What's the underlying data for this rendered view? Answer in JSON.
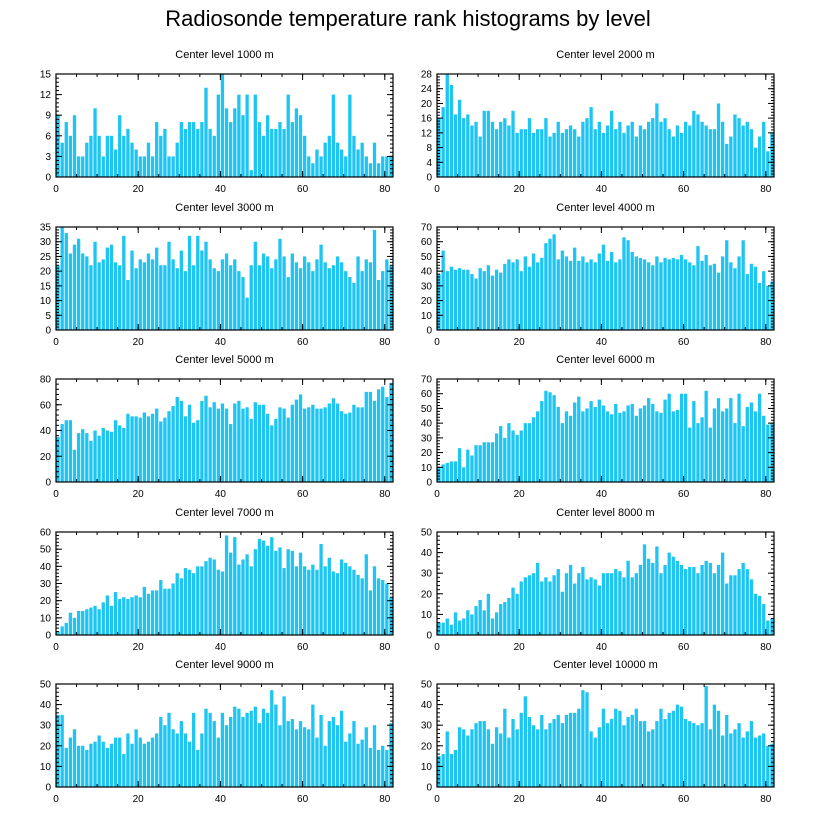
{
  "figure": {
    "title": "Radiosonde temperature rank histograms by level"
  },
  "chart_data": [
    {
      "type": "bar",
      "title": "Center level 1000 m",
      "xlim": [
        0,
        82
      ],
      "ylim": [
        0,
        15
      ],
      "xticks": [
        0,
        20,
        40,
        60,
        80
      ],
      "yticks": [
        0,
        3,
        6,
        9,
        12,
        15
      ],
      "y_axis_side": "left",
      "values": [
        9,
        5,
        8,
        6,
        9,
        3,
        3,
        5,
        6,
        10,
        6,
        3,
        6,
        6,
        4,
        9,
        6,
        7,
        5,
        4,
        3,
        3,
        5,
        3,
        8,
        6,
        7,
        3,
        3,
        5,
        8,
        7,
        8,
        8,
        7,
        8,
        13,
        7,
        6,
        12,
        15,
        10,
        8,
        10,
        12,
        9,
        12,
        1,
        12,
        8,
        6,
        9,
        7,
        7,
        8,
        7,
        12,
        8,
        10,
        9,
        6,
        3,
        2,
        4,
        3,
        5,
        6,
        12,
        5,
        4,
        3,
        12,
        6,
        4,
        5,
        3,
        2,
        5,
        2,
        3,
        3,
        3
      ]
    },
    {
      "type": "bar",
      "title": "Center level 2000 m",
      "xlim": [
        0,
        82
      ],
      "ylim": [
        0,
        28
      ],
      "xticks": [
        0,
        20,
        40,
        60,
        80
      ],
      "yticks": [
        0,
        4,
        8,
        12,
        16,
        20,
        24,
        28
      ],
      "y_axis_side": "left",
      "values": [
        16,
        19,
        28,
        25,
        17,
        21,
        16,
        17,
        14,
        15,
        11,
        18,
        18,
        15,
        13,
        15,
        16,
        14,
        18,
        12,
        13,
        13,
        16,
        12,
        13,
        13,
        16,
        11,
        12,
        15,
        12,
        13,
        14,
        13,
        11,
        15,
        16,
        19,
        13,
        15,
        12,
        14,
        18,
        13,
        15,
        12,
        14,
        15,
        11,
        14,
        13,
        15,
        16,
        20,
        15,
        16,
        13,
        11,
        14,
        12,
        15,
        14,
        18,
        17,
        15,
        14,
        13,
        13,
        20,
        15,
        9,
        11,
        17,
        16,
        14,
        15,
        13,
        8,
        11,
        15,
        7,
        12
      ]
    },
    {
      "type": "bar",
      "title": "Center level 3000 m",
      "xlim": [
        0,
        82
      ],
      "ylim": [
        0,
        35
      ],
      "xticks": [
        0,
        20,
        40,
        60,
        80
      ],
      "yticks": [
        0,
        5,
        10,
        15,
        20,
        25,
        30,
        35
      ],
      "y_axis_side": "left",
      "values": [
        22,
        35,
        33,
        26,
        29,
        31,
        26,
        25,
        22,
        30,
        23,
        24,
        28,
        29,
        23,
        22,
        32,
        17,
        27,
        21,
        24,
        23,
        26,
        24,
        28,
        22,
        22,
        30,
        24,
        21,
        27,
        20,
        32,
        22,
        32,
        27,
        30,
        24,
        21,
        20,
        24,
        26,
        22,
        24,
        20,
        18,
        11,
        22,
        30,
        22,
        26,
        25,
        21,
        24,
        31,
        25,
        18,
        26,
        23,
        21,
        25,
        23,
        20,
        24,
        29,
        23,
        21,
        22,
        25,
        23,
        20,
        18,
        16,
        25,
        20,
        24,
        23,
        34,
        17,
        20,
        24,
        22
      ]
    },
    {
      "type": "bar",
      "title": "Center level 4000 m",
      "xlim": [
        0,
        82
      ],
      "ylim": [
        0,
        70
      ],
      "xticks": [
        0,
        20,
        40,
        60,
        80
      ],
      "yticks": [
        0,
        10,
        20,
        30,
        40,
        50,
        60,
        70
      ],
      "y_axis_side": "left",
      "values": [
        38,
        54,
        40,
        43,
        41,
        42,
        41,
        41,
        38,
        35,
        42,
        40,
        44,
        37,
        41,
        39,
        45,
        48,
        46,
        48,
        40,
        50,
        43,
        52,
        46,
        49,
        59,
        62,
        65,
        48,
        54,
        50,
        47,
        56,
        47,
        50,
        46,
        48,
        46,
        52,
        58,
        47,
        53,
        46,
        48,
        63,
        61,
        53,
        50,
        49,
        48,
        46,
        44,
        50,
        46,
        49,
        48,
        49,
        48,
        51,
        48,
        46,
        44,
        57,
        47,
        51,
        44,
        45,
        39,
        50,
        61,
        46,
        42,
        50,
        61,
        38,
        45,
        43,
        32,
        40,
        30,
        33
      ]
    },
    {
      "type": "bar",
      "title": "Center level 5000 m",
      "xlim": [
        0,
        82
      ],
      "ylim": [
        0,
        80
      ],
      "xticks": [
        0,
        20,
        40,
        60,
        80
      ],
      "yticks": [
        0,
        20,
        40,
        60,
        80
      ],
      "y_axis_side": "left",
      "values": [
        35,
        45,
        48,
        48,
        25,
        38,
        41,
        38,
        32,
        40,
        36,
        42,
        40,
        39,
        48,
        44,
        42,
        53,
        51,
        51,
        50,
        54,
        51,
        53,
        57,
        47,
        50,
        55,
        59,
        66,
        63,
        51,
        60,
        46,
        48,
        63,
        67,
        58,
        62,
        57,
        61,
        57,
        45,
        61,
        63,
        57,
        58,
        49,
        62,
        60,
        60,
        53,
        44,
        49,
        58,
        57,
        50,
        60,
        64,
        68,
        57,
        58,
        60,
        57,
        57,
        58,
        61,
        65,
        61,
        55,
        53,
        54,
        60,
        58,
        58,
        70,
        70,
        63,
        72,
        74,
        66,
        77
      ]
    },
    {
      "type": "bar",
      "title": "Center level 6000 m",
      "xlim": [
        0,
        82
      ],
      "ylim": [
        0,
        70
      ],
      "xticks": [
        0,
        20,
        40,
        60,
        80
      ],
      "yticks": [
        0,
        10,
        20,
        30,
        40,
        50,
        60,
        70
      ],
      "y_axis_side": "left",
      "values": [
        10,
        12,
        13,
        14,
        14,
        23,
        10,
        22,
        18,
        25,
        25,
        27,
        27,
        27,
        33,
        38,
        30,
        40,
        35,
        32,
        35,
        40,
        40,
        44,
        48,
        55,
        62,
        61,
        59,
        51,
        40,
        48,
        45,
        54,
        58,
        48,
        50,
        55,
        51,
        56,
        52,
        48,
        46,
        53,
        47,
        48,
        52,
        53,
        45,
        50,
        52,
        57,
        53,
        48,
        47,
        56,
        60,
        48,
        49,
        60,
        60,
        37,
        55,
        40,
        44,
        62,
        37,
        50,
        57,
        48,
        50,
        57,
        40,
        60,
        38,
        51,
        54,
        48,
        60,
        45,
        39,
        40
      ]
    },
    {
      "type": "bar",
      "title": "Center level 7000 m",
      "xlim": [
        0,
        82
      ],
      "ylim": [
        0,
        60
      ],
      "xticks": [
        0,
        20,
        40,
        60,
        80
      ],
      "yticks": [
        0,
        10,
        20,
        30,
        40,
        50,
        60
      ],
      "y_axis_side": "left",
      "values": [
        2,
        5,
        7,
        13,
        10,
        14,
        14,
        15,
        16,
        17,
        15,
        19,
        23,
        17,
        25,
        21,
        22,
        21,
        22,
        23,
        22,
        28,
        24,
        26,
        26,
        32,
        27,
        27,
        30,
        36,
        33,
        39,
        38,
        36,
        40,
        40,
        43,
        45,
        44,
        38,
        37,
        58,
        48,
        57,
        41,
        44,
        47,
        40,
        50,
        56,
        55,
        52,
        57,
        49,
        51,
        39,
        50,
        49,
        40,
        48,
        40,
        38,
        41,
        38,
        53,
        40,
        45,
        37,
        36,
        44,
        42,
        40,
        38,
        35,
        33,
        47,
        26,
        40,
        33,
        32,
        30,
        22
      ]
    },
    {
      "type": "bar",
      "title": "Center level 8000 m",
      "xlim": [
        0,
        82
      ],
      "ylim": [
        0,
        50
      ],
      "xticks": [
        0,
        20,
        40,
        60,
        80
      ],
      "yticks": [
        0,
        10,
        20,
        30,
        40,
        50
      ],
      "y_axis_side": "left",
      "values": [
        6,
        6,
        8,
        5,
        11,
        7,
        8,
        12,
        10,
        14,
        17,
        12,
        20,
        8,
        11,
        15,
        16,
        18,
        23,
        20,
        26,
        28,
        29,
        30,
        35,
        26,
        28,
        26,
        29,
        32,
        21,
        30,
        34,
        25,
        30,
        33,
        27,
        28,
        27,
        24,
        30,
        30,
        30,
        32,
        31,
        28,
        36,
        28,
        30,
        34,
        44,
        37,
        35,
        43,
        30,
        34,
        40,
        38,
        36,
        34,
        32,
        33,
        33,
        30,
        34,
        36,
        35,
        30,
        34,
        40,
        25,
        29,
        29,
        32,
        35,
        32,
        27,
        20,
        19,
        15,
        7,
        8
      ]
    },
    {
      "type": "bar",
      "title": "Center level 9000 m",
      "xlim": [
        0,
        82
      ],
      "ylim": [
        0,
        50
      ],
      "xticks": [
        0,
        20,
        40,
        60,
        80
      ],
      "yticks": [
        0,
        10,
        20,
        30,
        40,
        50
      ],
      "y_axis_side": "left",
      "values": [
        35,
        35,
        19,
        24,
        28,
        20,
        20,
        18,
        21,
        22,
        25,
        22,
        19,
        21,
        24,
        24,
        16,
        26,
        21,
        28,
        24,
        21,
        22,
        24,
        26,
        34,
        30,
        36,
        28,
        26,
        32,
        26,
        22,
        36,
        18,
        26,
        38,
        36,
        32,
        24,
        36,
        30,
        34,
        39,
        38,
        34,
        36,
        37,
        39,
        31,
        38,
        36,
        47,
        40,
        30,
        44,
        32,
        33,
        28,
        32,
        29,
        28,
        40,
        24,
        35,
        20,
        32,
        34,
        30,
        37,
        22,
        26,
        32,
        21,
        23,
        29,
        19,
        30,
        18,
        20,
        18,
        31
      ]
    },
    {
      "type": "bar",
      "title": "Center level 10000 m",
      "xlim": [
        0,
        82
      ],
      "ylim": [
        0,
        50
      ],
      "xticks": [
        0,
        20,
        40,
        60,
        80
      ],
      "yticks": [
        0,
        10,
        20,
        30,
        40,
        50
      ],
      "y_axis_side": "left",
      "values": [
        15,
        16,
        27,
        16,
        18,
        29,
        28,
        25,
        28,
        31,
        32,
        32,
        28,
        21,
        29,
        26,
        38,
        24,
        33,
        28,
        36,
        44,
        34,
        30,
        28,
        35,
        28,
        31,
        33,
        35,
        31,
        35,
        36,
        36,
        38,
        47,
        46,
        27,
        24,
        29,
        38,
        31,
        33,
        38,
        37,
        30,
        34,
        35,
        38,
        32,
        32,
        27,
        28,
        32,
        38,
        33,
        36,
        37,
        40,
        39,
        33,
        32,
        31,
        30,
        31,
        49,
        28,
        40,
        37,
        25,
        35,
        26,
        28,
        31,
        24,
        27,
        32,
        24,
        25,
        26,
        20,
        21
      ]
    }
  ]
}
